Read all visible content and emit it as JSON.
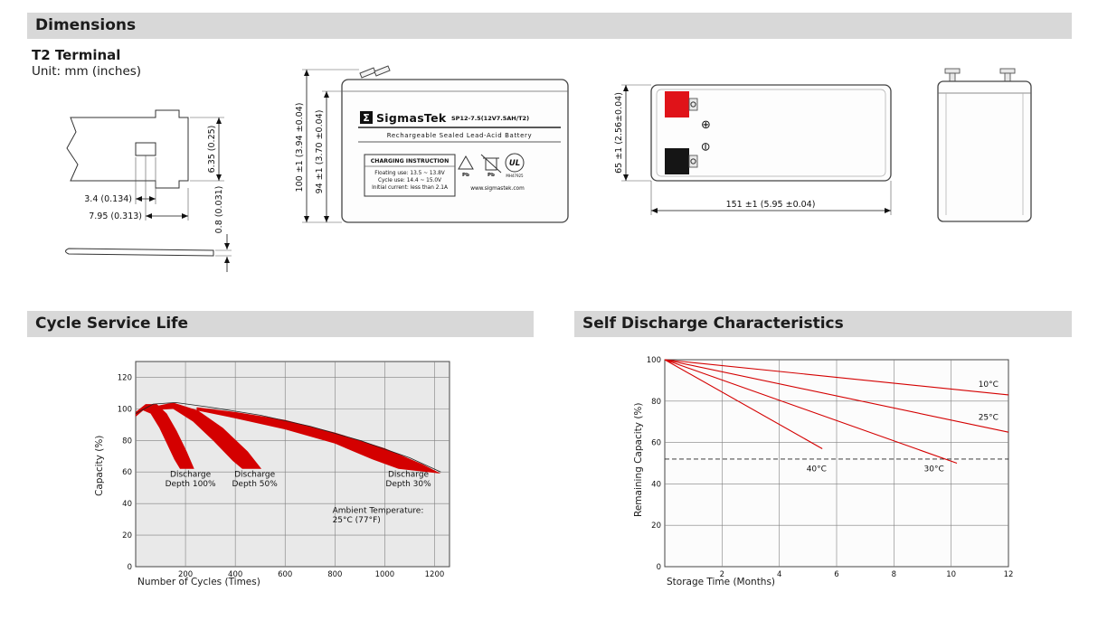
{
  "sections": {
    "dimensions": "Dimensions",
    "cycle_service_life": "Cycle Service Life",
    "self_discharge": "Self Discharge Characteristics"
  },
  "dimensions_block": {
    "terminal_title": "T2 Terminal",
    "unit_label": "Unit: mm (inches)",
    "terminal_drawing": {
      "dim_slot_width": "3.4 (0.134)",
      "dim_tab_width": "7.95 (0.313)",
      "dim_tab_height": "6.35 (0.25)",
      "dim_thickness": "0.8 (0.031)"
    },
    "front_view": {
      "brand_initial": "Σ",
      "brand": "SigmasTek",
      "model": "SP12-7.5(12V7.5AH/T2)",
      "battery_type": "Rechargeable Sealed Lead-Acid Battery",
      "charging_title": "CHARGING INSTRUCTION",
      "charging_line1": "Floating use: 13.5 ~ 13.8V",
      "charging_line2": "Cycle use: 14.4 ~ 15.0V",
      "charging_line3": "Initial current: less than 2.1A",
      "pb_label1": "Pb",
      "pb_label2": "Pb",
      "ul_label": "UL",
      "ul_number": "MH47925",
      "website": "www.sigmastek.com",
      "dim_total_height": "100 ±1 (3.94 ±0.04)",
      "dim_case_height": "94 ±1 (3.70 ±0.04)"
    },
    "side_view": {
      "positive_symbol": "⊕",
      "negative_symbol": "⊖",
      "dim_height": "65 ±1 (2.56±0.04)",
      "dim_length": "151 ±1 (5.95 ±0.04)"
    }
  },
  "chart_data": [
    {
      "type": "area",
      "title": "Cycle Service Life",
      "xlabel": "Number of Cycles (Times)",
      "ylabel": "Capacity (%)",
      "xlim": [
        0,
        1260
      ],
      "ylim": [
        0,
        130
      ],
      "xticks": [
        200,
        400,
        600,
        800,
        1000,
        1200
      ],
      "yticks": [
        0,
        20,
        40,
        60,
        80,
        100,
        120
      ],
      "grid": true,
      "legend": "none",
      "plot_bg": "#e9e9e9",
      "accent": "#d40000",
      "bands": [
        {
          "name": "Discharge Depth 100%",
          "upper": [
            [
              0,
              98
            ],
            [
              40,
              103
            ],
            [
              85,
              103
            ],
            [
              125,
              97
            ],
            [
              165,
              86
            ],
            [
              205,
              73
            ],
            [
              235,
              62
            ]
          ],
          "lower": [
            [
              0,
              95
            ],
            [
              30,
              99
            ],
            [
              60,
              97
            ],
            [
              95,
              88
            ],
            [
              125,
              78
            ],
            [
              155,
              68
            ],
            [
              178,
              62
            ]
          ]
        },
        {
          "name": "Discharge Depth 50%",
          "upper": [
            [
              60,
              101
            ],
            [
              150,
              104
            ],
            [
              250,
              99
            ],
            [
              350,
              88
            ],
            [
              450,
              73
            ],
            [
              505,
              62
            ]
          ],
          "lower": [
            [
              60,
              99
            ],
            [
              150,
              100
            ],
            [
              230,
              92
            ],
            [
              310,
              80
            ],
            [
              390,
              67
            ],
            [
              428,
              62
            ]
          ]
        },
        {
          "name": "Discharge Depth 30%",
          "upper": [
            [
              245,
              101
            ],
            [
              400,
              98
            ],
            [
              600,
              93
            ],
            [
              800,
              85
            ],
            [
              1000,
              75
            ],
            [
              1150,
              65
            ],
            [
              1225,
              59
            ]
          ],
          "lower": [
            [
              245,
              99
            ],
            [
              400,
              94
            ],
            [
              600,
              87
            ],
            [
              800,
              78
            ],
            [
              950,
              68
            ],
            [
              1055,
              62
            ]
          ]
        }
      ],
      "curves": [
        {
          "name": "capacity-envelope",
          "color": "#222222",
          "width": 0.8,
          "points": [
            [
              0,
              97
            ],
            [
              70,
              103
            ],
            [
              160,
              104
            ],
            [
              300,
              101
            ],
            [
              500,
              96
            ],
            [
              700,
              89
            ],
            [
              900,
              80
            ],
            [
              1100,
              69
            ],
            [
              1225,
              60
            ]
          ]
        }
      ],
      "annotations": [
        {
          "text": "Discharge\nDepth 100%",
          "x": 220,
          "y": 57,
          "anchor": "middle"
        },
        {
          "text": "Discharge\nDepth 50%",
          "x": 478,
          "y": 57,
          "anchor": "middle"
        },
        {
          "text": "Discharge\nDepth 30%",
          "x": 1095,
          "y": 57,
          "anchor": "middle"
        },
        {
          "text": "Ambient Temperature:\n25°C (77°F)",
          "x": 790,
          "y": 34,
          "anchor": "start"
        }
      ]
    },
    {
      "type": "line",
      "title": "Self Discharge Characteristics",
      "xlabel": "Storage Time (Months)",
      "ylabel": "Remaining Capacity (%)",
      "xlim": [
        0,
        12
      ],
      "ylim": [
        0,
        100
      ],
      "xticks": [
        2,
        4,
        6,
        8,
        10,
        12
      ],
      "yticks": [
        0,
        20,
        40,
        60,
        80,
        100
      ],
      "grid": true,
      "legend": "inline",
      "plot_bg": "#fcfcfc",
      "accent": "#d40000",
      "dashed_y": 52,
      "series": [
        {
          "name": "10C",
          "label": "10°C",
          "points": [
            [
              0,
              100
            ],
            [
              12,
              83
            ]
          ]
        },
        {
          "name": "25C",
          "label": "25°C",
          "points": [
            [
              0,
              100
            ],
            [
              12,
              65
            ]
          ]
        },
        {
          "name": "30C",
          "label": "30°C",
          "points": [
            [
              0,
              100
            ],
            [
              10.2,
              50
            ]
          ]
        },
        {
          "name": "40C",
          "label": "40°C",
          "points": [
            [
              0,
              100
            ],
            [
              5.5,
              57
            ]
          ]
        }
      ],
      "annotations": [
        {
          "text": "10°C",
          "x": 11.3,
          "y": 87,
          "anchor": "middle"
        },
        {
          "text": "25°C",
          "x": 11.3,
          "y": 71,
          "anchor": "middle"
        },
        {
          "text": "30°C",
          "x": 9.4,
          "y": 46,
          "anchor": "middle"
        },
        {
          "text": "40°C",
          "x": 5.3,
          "y": 46,
          "anchor": "middle"
        }
      ]
    }
  ]
}
